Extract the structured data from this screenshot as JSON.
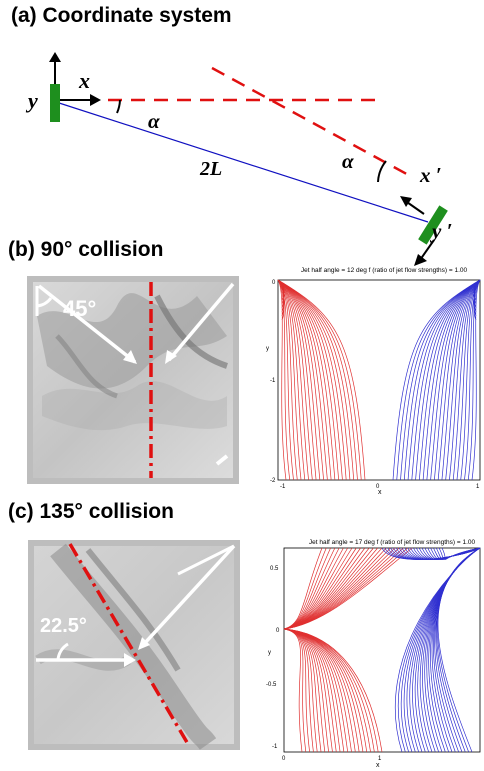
{
  "panel_a": {
    "heading": "(a) Coordinate system",
    "labels": {
      "y": "y",
      "x": "x",
      "alpha_left": "α",
      "length": "2L",
      "alpha_right": "α",
      "x_prime": "x ′",
      "y_prime": "y ′"
    }
  },
  "panel_b": {
    "heading": "(b) 90° collision",
    "photo_angle": "45°",
    "plot": {
      "title": "Jet half angle = 12 deg     f (ratio of jet flow strengths) = 1.00",
      "xlabel": "x",
      "ylabel": "y",
      "xticks": [
        "-1",
        "0",
        "1"
      ],
      "yticks": [
        "0",
        "-1",
        "-2"
      ]
    }
  },
  "panel_c": {
    "heading": "(c) 135° collision",
    "photo_angle": "22.5°",
    "plot": {
      "title": "Jet half angle = 17 deg     f (ratio of jet flow strengths) = 1.00",
      "xlabel": "x",
      "ylabel": "y",
      "xticks": [
        "0",
        "1"
      ],
      "yticks": [
        "0.5",
        "0",
        "-0.5",
        "-1"
      ]
    }
  },
  "colors": {
    "left_jet": "#e03030",
    "right_jet": "#3030d0",
    "dash": "#e01010",
    "emitter": "#1e8f1e",
    "baseline": "#1010c0"
  }
}
